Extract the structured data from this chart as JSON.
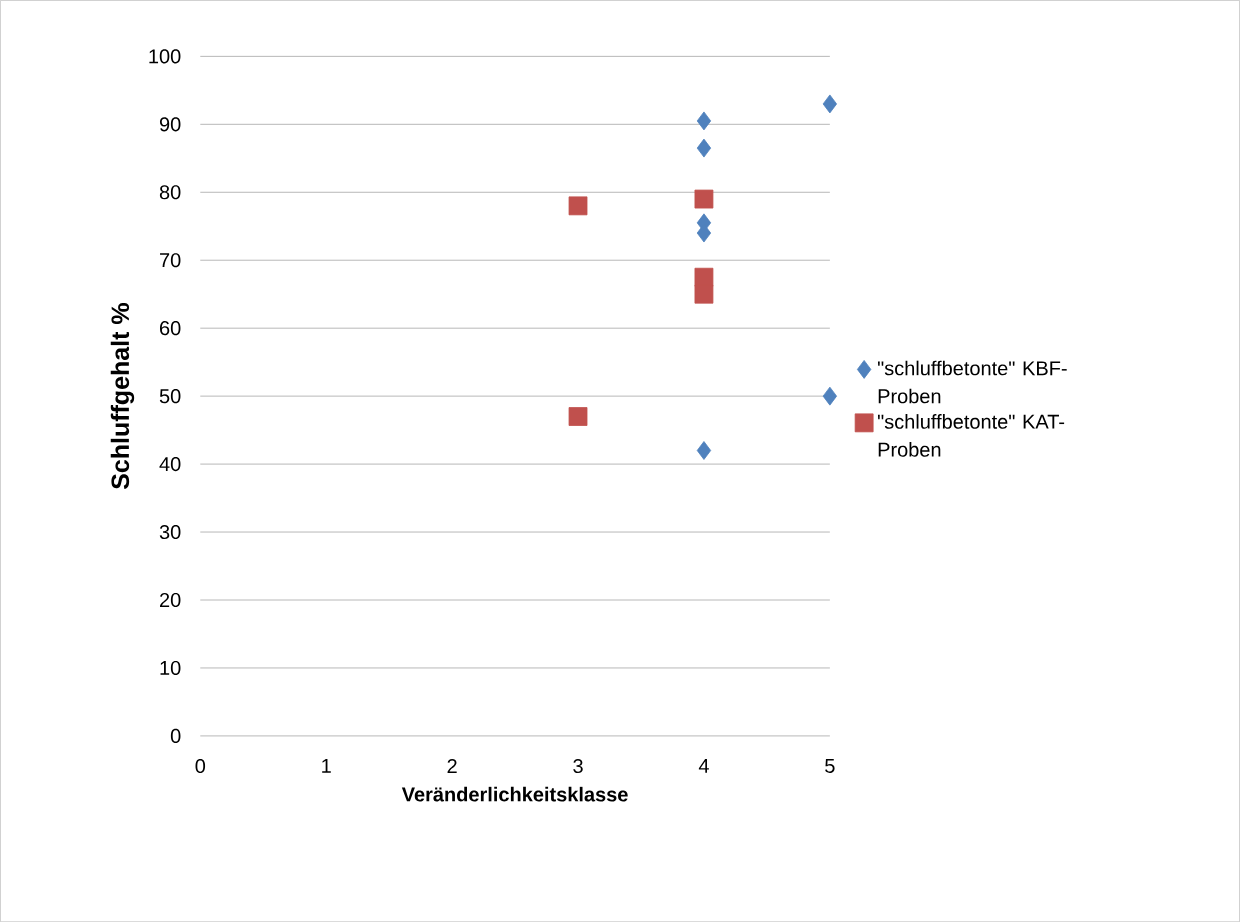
{
  "chart_data": {
    "type": "scatter",
    "xlabel": "Veränderlichkeitsklasse",
    "ylabel": "Schluffgehalt %",
    "xlim": [
      0,
      5
    ],
    "xticks": [
      0,
      1,
      2,
      3,
      4,
      5
    ],
    "ylim": [
      0,
      100
    ],
    "yticks": [
      0,
      10,
      20,
      30,
      40,
      50,
      60,
      70,
      80,
      90,
      100
    ],
    "grid": "y",
    "legend": "right",
    "series": [
      {
        "name": "\"schluffbetonte\" KBF-Proben",
        "color": "#4f81bd",
        "marker": "diamond",
        "x": [
          4,
          4,
          4,
          4,
          4,
          5,
          5
        ],
        "values": [
          90.5,
          86.5,
          75.5,
          74,
          42,
          93,
          50
        ]
      },
      {
        "name": "\"schluffbetonte\" KAT-Proben",
        "color": "#c0504d",
        "marker": "square",
        "x": [
          3,
          3,
          4,
          4,
          4
        ],
        "values": [
          78,
          47,
          79,
          67.5,
          65
        ]
      }
    ]
  }
}
